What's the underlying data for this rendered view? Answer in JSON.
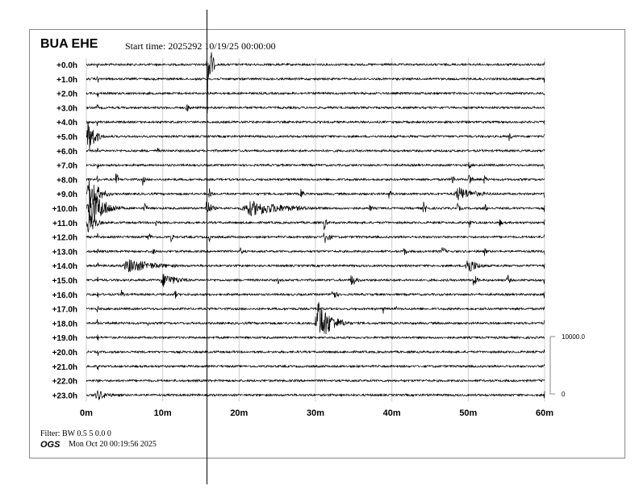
{
  "header": {
    "station": "BUA EHE",
    "start_time": "Start time: 2025292 10/19/25 00:00:00"
  },
  "footer": {
    "filter": "Filter: BW 0.5 5 0.0 0",
    "agency": "OGS",
    "timestamp": "Mon Oct 20 00:19:56 2025"
  },
  "chart_data": {
    "type": "line",
    "title": "BUA EHE",
    "row_labels": [
      "+0.0h",
      "+1.0h",
      "+2.0h",
      "+3.0h",
      "+4.0h",
      "+5.0h",
      "+6.0h",
      "+7.0h",
      "+8.0h",
      "+9.0h",
      "+10.0h",
      "+11.0h",
      "+12.0h",
      "+13.0h",
      "+14.0h",
      "+15.0h",
      "+16.0h",
      "+17.0h",
      "+18.0h",
      "+19.0h",
      "+20.0h",
      "+21.0h",
      "+22.0h",
      "+23.0h"
    ],
    "x_ticks": [
      "0m",
      "10m",
      "20m",
      "30m",
      "40m",
      "50m",
      "60m"
    ],
    "xlim": [
      0,
      60
    ],
    "grid": true,
    "scale_bar": {
      "top_label": "10000.0",
      "bottom_label": "0",
      "max": 10000
    },
    "cursor_minute": 15.8,
    "trace_color": "#000000",
    "grid_color": "#cccccc",
    "events": [
      [
        0,
        15.7,
        1.2,
        9600
      ],
      [
        3,
        13,
        1.5,
        900
      ],
      [
        5,
        0,
        2.5,
        3500
      ],
      [
        5,
        55.3,
        0.6,
        1500
      ],
      [
        6,
        9.3,
        0.5,
        900
      ],
      [
        7,
        1.5,
        0.5,
        600
      ],
      [
        7,
        4,
        0.6,
        700
      ],
      [
        7,
        50,
        1,
        900
      ],
      [
        8,
        3.8,
        0.8,
        1600
      ],
      [
        8,
        7.3,
        0.8,
        1200
      ],
      [
        8,
        47.8,
        0.8,
        1400
      ],
      [
        8,
        50,
        1,
        1600
      ],
      [
        8,
        52,
        1,
        1000
      ],
      [
        9,
        0,
        3.5,
        3500
      ],
      [
        9,
        16,
        1,
        1200
      ],
      [
        9,
        28,
        1,
        1300
      ],
      [
        9,
        39.5,
        1,
        1200
      ],
      [
        9,
        48,
        7,
        1300
      ],
      [
        10,
        0,
        5,
        4000
      ],
      [
        10,
        7.5,
        1,
        1200
      ],
      [
        10,
        15.5,
        2,
        1800
      ],
      [
        10,
        20,
        15,
        1400
      ],
      [
        10,
        37,
        1,
        900
      ],
      [
        10,
        44,
        1.5,
        1200
      ],
      [
        10,
        48.5,
        1,
        1000
      ],
      [
        10,
        52,
        1,
        1200
      ],
      [
        11,
        0,
        2.5,
        2500
      ],
      [
        11,
        9,
        1,
        900
      ],
      [
        11,
        31,
        1,
        1500
      ],
      [
        11,
        50,
        1,
        1100
      ],
      [
        11,
        54,
        1,
        900
      ],
      [
        12,
        8,
        1,
        1300
      ],
      [
        12,
        11,
        1,
        900
      ],
      [
        12,
        16,
        1,
        900
      ],
      [
        12,
        31,
        2,
        1400
      ],
      [
        13,
        8.5,
        1,
        1000
      ],
      [
        13,
        20,
        1,
        900
      ],
      [
        13,
        41.5,
        1,
        1100
      ],
      [
        13,
        46.5,
        1,
        1300
      ],
      [
        13,
        52,
        1,
        900
      ],
      [
        14,
        4.5,
        11,
        1300
      ],
      [
        14,
        49.5,
        3.5,
        1800
      ],
      [
        15,
        9.5,
        6,
        1300
      ],
      [
        15,
        25,
        1,
        800
      ],
      [
        15,
        34.5,
        2,
        1300
      ],
      [
        15,
        50.5,
        1.5,
        1300
      ],
      [
        15,
        55,
        1,
        1300
      ],
      [
        16,
        4.5,
        1,
        1000
      ],
      [
        16,
        11.5,
        1,
        900
      ],
      [
        16,
        32,
        1.5,
        1600
      ],
      [
        17,
        38.8,
        0.6,
        1000
      ],
      [
        17,
        40.5,
        0.5,
        600
      ],
      [
        18,
        8,
        0.4,
        900
      ],
      [
        18,
        29.8,
        5,
        4200
      ],
      [
        23,
        1,
        4.5,
        1000
      ]
    ]
  }
}
